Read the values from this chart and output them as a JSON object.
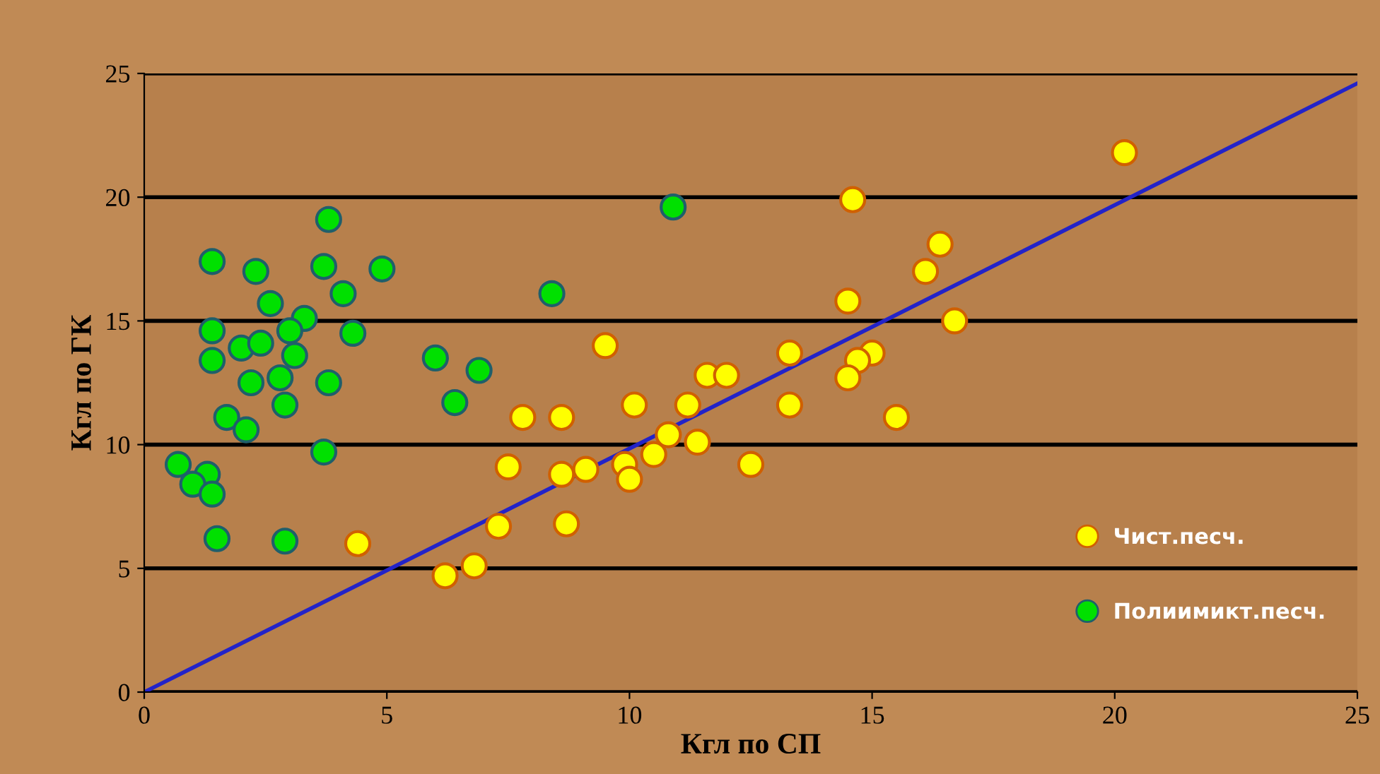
{
  "chart_data": {
    "type": "scatter",
    "xlabel": "Кгл по СП",
    "ylabel": "Кгл по ГК",
    "xlim": [
      0,
      25
    ],
    "ylim": [
      0,
      25
    ],
    "xticks": [
      0,
      5,
      10,
      15,
      20,
      25
    ],
    "yticks": [
      0,
      5,
      10,
      15,
      20,
      25
    ],
    "grid": "y",
    "legend": "bottom right",
    "marker": "circle",
    "series": [
      {
        "name": "Чист.песч.",
        "color": "#ffff00",
        "x": [
          14.6,
          16.4,
          16.1,
          14.5,
          16.7,
          9.5,
          13.3,
          15.0,
          14.7,
          14.5,
          11.6,
          12.0,
          10.1,
          11.2,
          13.3,
          15.5,
          7.8,
          8.6,
          10.8,
          11.4,
          10.5,
          12.5,
          7.5,
          8.6,
          9.1,
          9.9,
          10.0,
          7.3,
          8.7,
          6.8,
          6.2,
          4.4,
          20.2
        ],
        "values": [
          19.9,
          18.1,
          17.0,
          15.8,
          15.0,
          14.0,
          13.7,
          13.7,
          13.4,
          12.7,
          12.8,
          12.8,
          11.6,
          11.6,
          11.6,
          11.1,
          11.1,
          11.1,
          10.4,
          10.1,
          9.6,
          9.2,
          9.1,
          8.8,
          9.0,
          9.2,
          8.6,
          6.7,
          6.8,
          5.1,
          4.7,
          6.0,
          21.8
        ]
      },
      {
        "name": "Полиимикт.песч.",
        "color": "#00e000",
        "x": [
          1.4,
          2.3,
          3.8,
          3.7,
          4.9,
          2.6,
          4.1,
          3.3,
          3.0,
          1.4,
          4.3,
          2.0,
          2.4,
          1.4,
          3.1,
          2.2,
          2.8,
          3.8,
          2.9,
          1.7,
          2.1,
          3.7,
          0.7,
          1.3,
          1.0,
          1.4,
          1.5,
          2.9,
          10.9,
          8.4,
          6.0,
          6.9,
          6.4
        ],
        "values": [
          17.4,
          17.0,
          19.1,
          17.2,
          17.1,
          15.7,
          16.1,
          15.1,
          14.6,
          14.6,
          14.5,
          13.9,
          14.1,
          13.4,
          13.6,
          12.5,
          12.7,
          12.5,
          11.6,
          11.1,
          10.6,
          9.7,
          9.2,
          8.8,
          8.4,
          8.0,
          6.2,
          6.1,
          19.6,
          16.1,
          13.5,
          13.0,
          11.7
        ]
      },
      {
        "type": "line",
        "color": "#2323c8",
        "x": [
          0,
          25
        ],
        "values": [
          0,
          24.6
        ],
        "marker": "none",
        "line_style": "solid"
      }
    ]
  }
}
